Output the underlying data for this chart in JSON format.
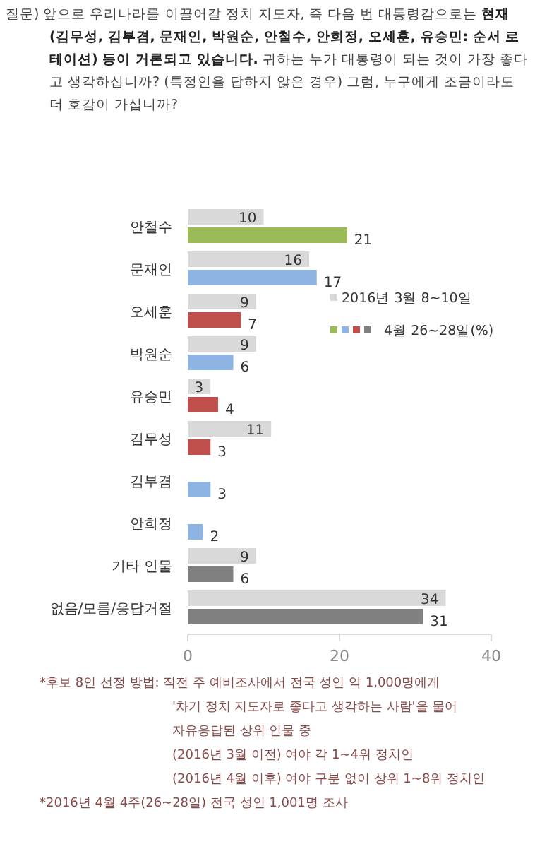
{
  "chart_data": {
    "type": "bar",
    "orientation": "horizontal",
    "title": "질문) 앞으로 우리나라를 이끌어갈 정치 지도자, 즉 다음 번 대통령감으로는 **현재 (김무성, 김부겸, 문재인, 박원순, 안철수, 안희정, 오세훈, 유승민: 순서 로테이션) 등이 거론되고 있습니다.** 귀하는 누가 대통령이 되는 것이 가장 좋다고 생각하십니까? (특정인을 답하지 않은 경우) 그럼, 누구에게 조금이라도 더 호감이 가십니까?",
    "categories": [
      "안철수",
      "문재인",
      "오세훈",
      "박원순",
      "유승민",
      "김무성",
      "김부겸",
      "안희정",
      "기타 인물",
      "없음/모름/응답거절"
    ],
    "series": [
      {
        "name": "2016년 3월 8~10일",
        "color": "#d9d9d9",
        "values": [
          10,
          16,
          9,
          9,
          3,
          11,
          null,
          null,
          9,
          34
        ]
      },
      {
        "name": "4월 26~28일(%)",
        "colors": [
          "#9bbb59",
          "#8db4e2",
          "#c0504d",
          "#8db4e2",
          "#c0504d",
          "#c0504d",
          "#8db4e2",
          "#8db4e2",
          "#808080",
          "#808080"
        ],
        "values": [
          21,
          17,
          7,
          6,
          4,
          3,
          3,
          2,
          6,
          31
        ]
      }
    ],
    "xlim": [
      0,
      40
    ],
    "xticks": [
      0,
      20,
      40
    ],
    "data_labels": true,
    "legend": "right",
    "grid": false,
    "annotations": [
      "*후보 8인 선정 방법: 직전 주 예비조사에서 전국 성인 약 1,000명에게",
      "'차기 정치 지도자로 좋다고 생각하는 사람'을 물어",
      "자유응답된 상위 인물 중",
      "(2016년 3월 이전) 여야 각 1~4위 정치인",
      "(2016년 4월 이후) 여야 구분 없이 상위 1~8위 정치인",
      "*2016년 4월 4주(26~28일) 전국 성인 1,001명 조사"
    ]
  }
}
